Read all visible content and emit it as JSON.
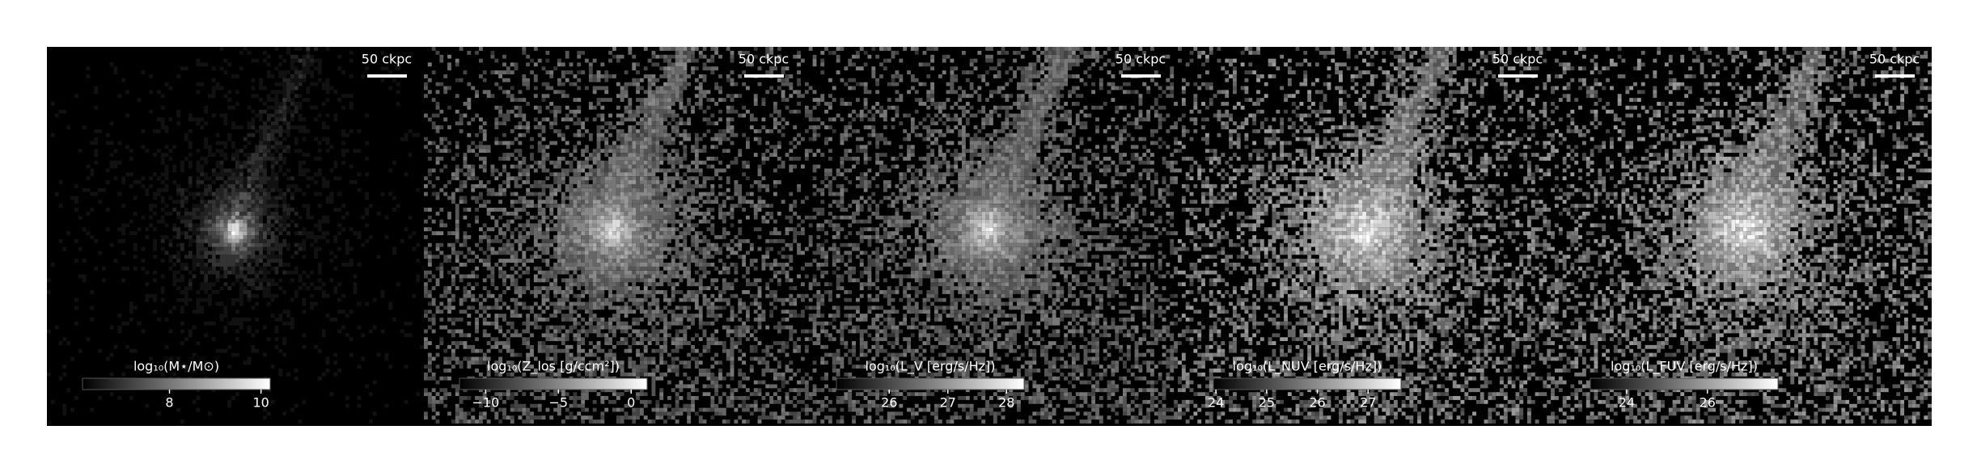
{
  "chart_data": [
    {
      "type": "image",
      "colormap": "gray",
      "scale_bar_label": "50 ckpc",
      "colorbar_label": "log₁₀(M⋆/M⊙)",
      "clim": [
        6.1,
        10.2
      ],
      "colorbar_ticks": [
        8,
        10
      ]
    },
    {
      "type": "image",
      "colormap": "gray",
      "scale_bar_label": "50 ckpc",
      "colorbar_label": "log₁₀(Z_los [g/ccm²])",
      "clim": [
        -11.8,
        1.1
      ],
      "colorbar_ticks": [
        {
          "value": -10,
          "label": "−10"
        },
        {
          "value": -5,
          "label": "−5"
        },
        0
      ]
    },
    {
      "type": "image",
      "colormap": "gray",
      "scale_bar_label": "50 ckpc",
      "colorbar_label": "log₁₀(L_V [erg/s/Hz])",
      "clim": [
        25.1,
        28.3
      ],
      "colorbar_ticks": [
        26,
        27,
        28
      ]
    },
    {
      "type": "image",
      "colormap": "gray",
      "scale_bar_label": "50 ckpc",
      "colorbar_label": "log₁₀(L_NUV [erg/s/Hz])",
      "clim": [
        23.95,
        27.65
      ],
      "colorbar_ticks": [
        24,
        25,
        26,
        27
      ]
    },
    {
      "type": "image",
      "colormap": "gray",
      "scale_bar_label": "50 ckpc",
      "colorbar_label": "log₁₀(L_FUV [erg/s/Hz])",
      "clim": [
        23.1,
        27.75
      ],
      "colorbar_ticks": [
        24,
        26
      ]
    }
  ]
}
